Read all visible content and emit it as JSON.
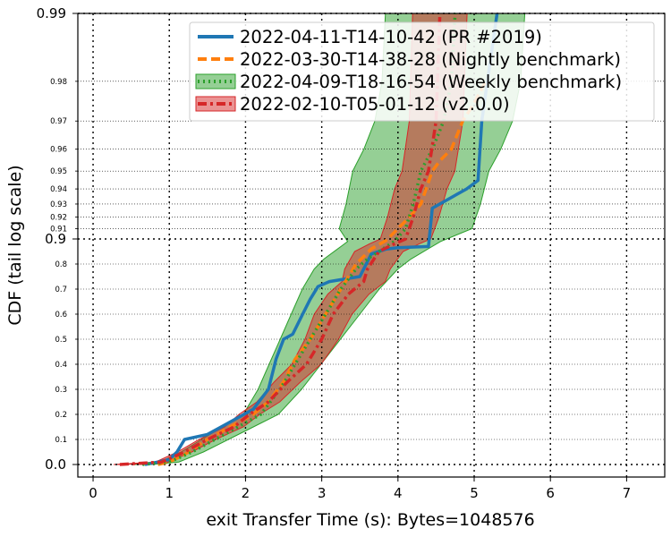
{
  "chart_data": {
    "type": "line",
    "xlabel": "exit Transfer Time (s): Bytes=1048576",
    "ylabel": "CDF (tail log scale)",
    "xlim": [
      -0.2,
      7.5
    ],
    "ylim": [
      0.0,
      0.99
    ],
    "y_scale": "tail log scale",
    "grid": true,
    "legend_position": "top-right",
    "x_ticks": [
      "0",
      "1",
      "2",
      "3",
      "4",
      "5",
      "6",
      "7"
    ],
    "y_ticks_major": [
      "0.0",
      "0.9",
      "0.99"
    ],
    "y_ticks_minor": [
      "0.1",
      "0.2",
      "0.3",
      "0.4",
      "0.5",
      "0.6",
      "0.7",
      "0.8",
      "0.91",
      "0.92",
      "0.93",
      "0.94",
      "0.95",
      "0.96",
      "0.97",
      "0.98"
    ],
    "series": [
      {
        "name": "2022-04-11-T14-10-42 (PR #2019)",
        "color": "#1f77b4",
        "style": "solid",
        "x": [
          0.68,
          0.85,
          1.0,
          1.1,
          1.2,
          1.5,
          1.8,
          2.1,
          2.3,
          2.4,
          2.5,
          2.62,
          2.75,
          2.85,
          2.95,
          3.1,
          3.3,
          3.5,
          3.55,
          3.65,
          3.85,
          4.0,
          4.4,
          4.45,
          4.9,
          5.05,
          5.1,
          5.3
        ],
        "y": [
          0.0,
          0.01,
          0.02,
          0.05,
          0.1,
          0.12,
          0.17,
          0.22,
          0.3,
          0.42,
          0.5,
          0.52,
          0.6,
          0.66,
          0.71,
          0.73,
          0.74,
          0.75,
          0.78,
          0.84,
          0.86,
          0.865,
          0.87,
          0.927,
          0.94,
          0.945,
          0.97,
          0.99
        ]
      },
      {
        "name": "2022-03-30-T14-38-28 (Nightly benchmark)",
        "color": "#ff7f0e",
        "style": "dashed",
        "x": [
          0.85,
          1.0,
          1.2,
          1.5,
          1.8,
          2.1,
          2.3,
          2.5,
          2.65,
          2.85,
          3.05,
          3.25,
          3.45,
          3.65,
          3.85,
          4.0,
          4.15,
          4.3,
          4.45,
          4.55,
          4.7,
          4.85,
          5.0,
          5.15
        ],
        "y": [
          0.0,
          0.01,
          0.04,
          0.1,
          0.15,
          0.2,
          0.25,
          0.33,
          0.42,
          0.5,
          0.6,
          0.7,
          0.8,
          0.86,
          0.895,
          0.91,
          0.92,
          0.93,
          0.95,
          0.955,
          0.96,
          0.97,
          0.975,
          0.98
        ]
      },
      {
        "name": "2022-04-09-T18-16-54 (Weekly benchmark)",
        "color": "#2ca02c",
        "style": "dotted",
        "x": [
          0.65,
          1.0,
          1.3,
          1.6,
          1.9,
          2.2,
          2.45,
          2.65,
          2.85,
          3.05,
          3.25,
          3.45,
          3.6,
          3.8,
          3.95,
          4.1,
          4.2,
          4.3,
          4.45,
          4.6,
          4.7,
          4.75
        ],
        "y": [
          0.0,
          0.01,
          0.05,
          0.1,
          0.15,
          0.2,
          0.3,
          0.4,
          0.5,
          0.6,
          0.7,
          0.78,
          0.82,
          0.86,
          0.89,
          0.91,
          0.93,
          0.95,
          0.96,
          0.97,
          0.98,
          0.99
        ]
      },
      {
        "name": "2022-02-10-T05-01-12 (v2.0.0)",
        "color": "#d62728",
        "style": "dashdot",
        "x": [
          0.35,
          0.9,
          1.2,
          1.5,
          1.85,
          2.05,
          2.3,
          2.55,
          2.8,
          3.0,
          3.15,
          3.35,
          3.55,
          3.6,
          3.75,
          3.95,
          4.1,
          4.2,
          4.3,
          4.4,
          4.5,
          4.55
        ],
        "y": [
          0.0,
          0.01,
          0.05,
          0.1,
          0.15,
          0.2,
          0.25,
          0.33,
          0.4,
          0.5,
          0.6,
          0.68,
          0.73,
          0.78,
          0.85,
          0.88,
          0.9,
          0.92,
          0.94,
          0.95,
          0.97,
          0.99
        ]
      }
    ]
  }
}
